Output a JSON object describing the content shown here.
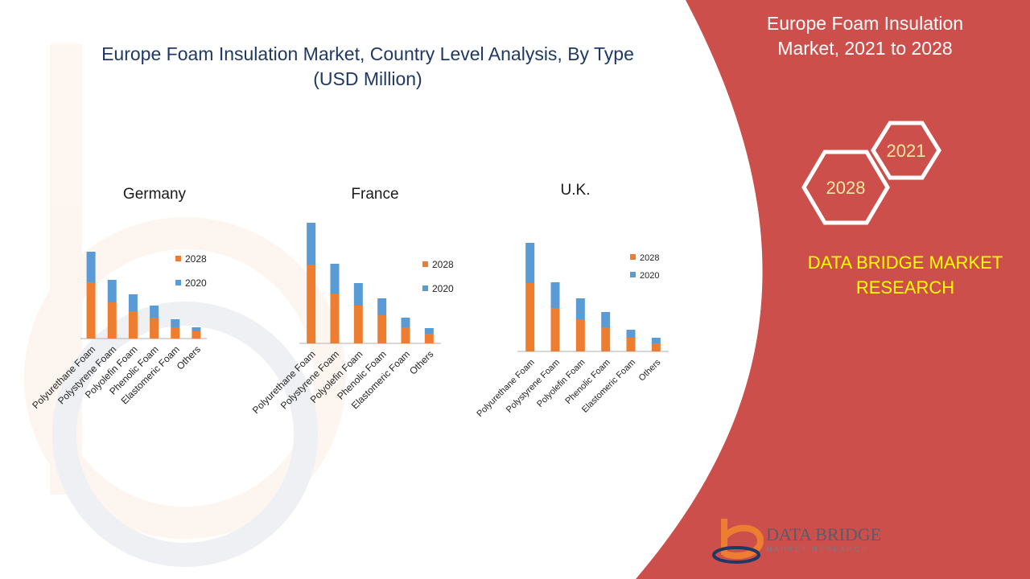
{
  "title": "Europe Foam Insulation Market, Country Level Analysis, By Type (USD Million)",
  "side_panel": {
    "heading": "Europe Foam Insulation Market, 2021 to 2028",
    "hex_labels": [
      "2021",
      "2028"
    ],
    "brand_text": "DATA BRIDGE MARKET RESEARCH",
    "logo_name": "DATA BRIDGE",
    "logo_tagline": "MARKET RESEARCH",
    "panel_color": "#cd4f4b",
    "brand_text_color": "#ffff00",
    "hex_label_color": "#f2e6a0"
  },
  "colors": {
    "2028": "#ed7d31",
    "2020": "#5b9bd5"
  },
  "chart_data": [
    {
      "type": "bar",
      "stacked": true,
      "title": "Germany",
      "categories": [
        "Polyurethane Foam",
        "Polystyrene Foam",
        "Polyolefin Foam",
        "Phenolic Foam",
        "Elastomeric Foam",
        "Others"
      ],
      "series": [
        {
          "name": "2028",
          "values": [
            70,
            45,
            34,
            26,
            14,
            9
          ]
        },
        {
          "name": "2020",
          "values": [
            38,
            28,
            21,
            15,
            10,
            5
          ]
        }
      ],
      "legend": [
        "2028",
        "2020"
      ],
      "legend_position": "right"
    },
    {
      "type": "bar",
      "stacked": true,
      "title": "France",
      "categories": [
        "Polyurethane Foam",
        "Polystyrene Foam",
        "Polyolefin Foam",
        "Phenolic Foam",
        "Elastomeric Foam",
        "Others"
      ],
      "series": [
        {
          "name": "2028",
          "values": [
            98,
            62,
            47,
            35,
            20,
            12
          ]
        },
        {
          "name": "2020",
          "values": [
            52,
            37,
            28,
            21,
            12,
            7
          ]
        }
      ],
      "legend": [
        "2028",
        "2020"
      ],
      "legend_position": "right"
    },
    {
      "type": "bar",
      "stacked": true,
      "title": "U.K.",
      "categories": [
        "Polyurethane Foam",
        "Polystyrene Foam",
        "Polyolefin Foam",
        "Phenolic Foam",
        "Elastomeric Foam",
        "Others"
      ],
      "series": [
        {
          "name": "2028",
          "values": [
            85,
            54,
            40,
            30,
            17,
            10
          ]
        },
        {
          "name": "2020",
          "values": [
            50,
            32,
            26,
            19,
            10,
            7
          ]
        }
      ],
      "legend": [
        "2028",
        "2020"
      ],
      "legend_position": "right"
    }
  ]
}
